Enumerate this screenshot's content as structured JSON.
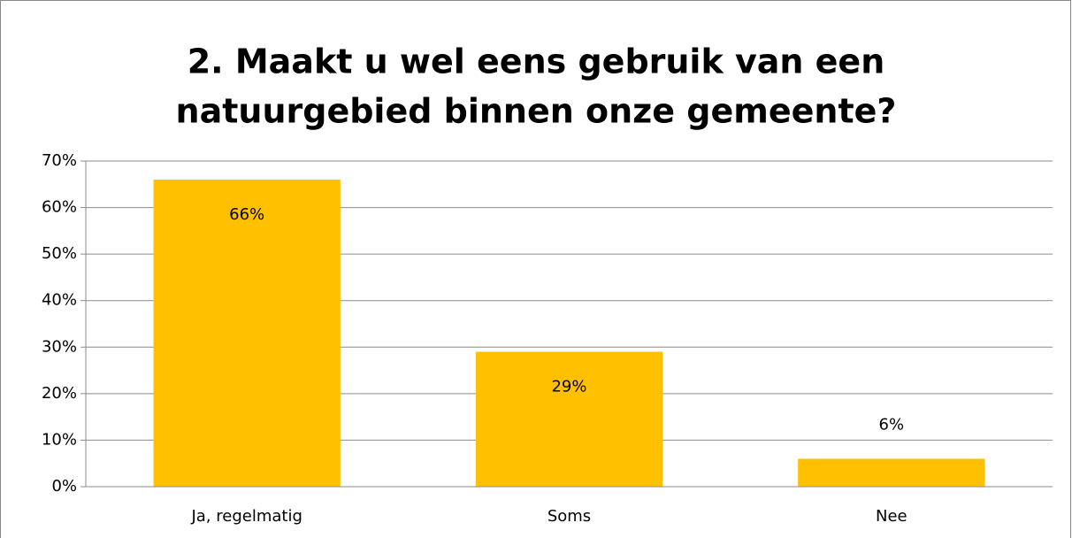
{
  "chart_data": {
    "type": "bar",
    "title": [
      "2. Maakt u wel eens gebruik van een",
      "natuurgebied binnen onze gemeente?"
    ],
    "categories": [
      "Ja, regelmatig",
      "Soms",
      "Nee"
    ],
    "values": [
      66,
      29,
      6
    ],
    "value_labels": [
      "66%",
      "29%",
      "6%"
    ],
    "color": "#ffc000",
    "ylim": [
      0,
      70
    ],
    "yticks": [
      {
        "value": 0,
        "label": "0%"
      },
      {
        "value": 10,
        "label": "10%"
      },
      {
        "value": 20,
        "label": "20%"
      },
      {
        "value": 30,
        "label": "30%"
      },
      {
        "value": 40,
        "label": "40%"
      },
      {
        "value": 50,
        "label": "50%"
      },
      {
        "value": 60,
        "label": "60%"
      },
      {
        "value": 70,
        "label": "70%"
      }
    ],
    "grid": true
  }
}
